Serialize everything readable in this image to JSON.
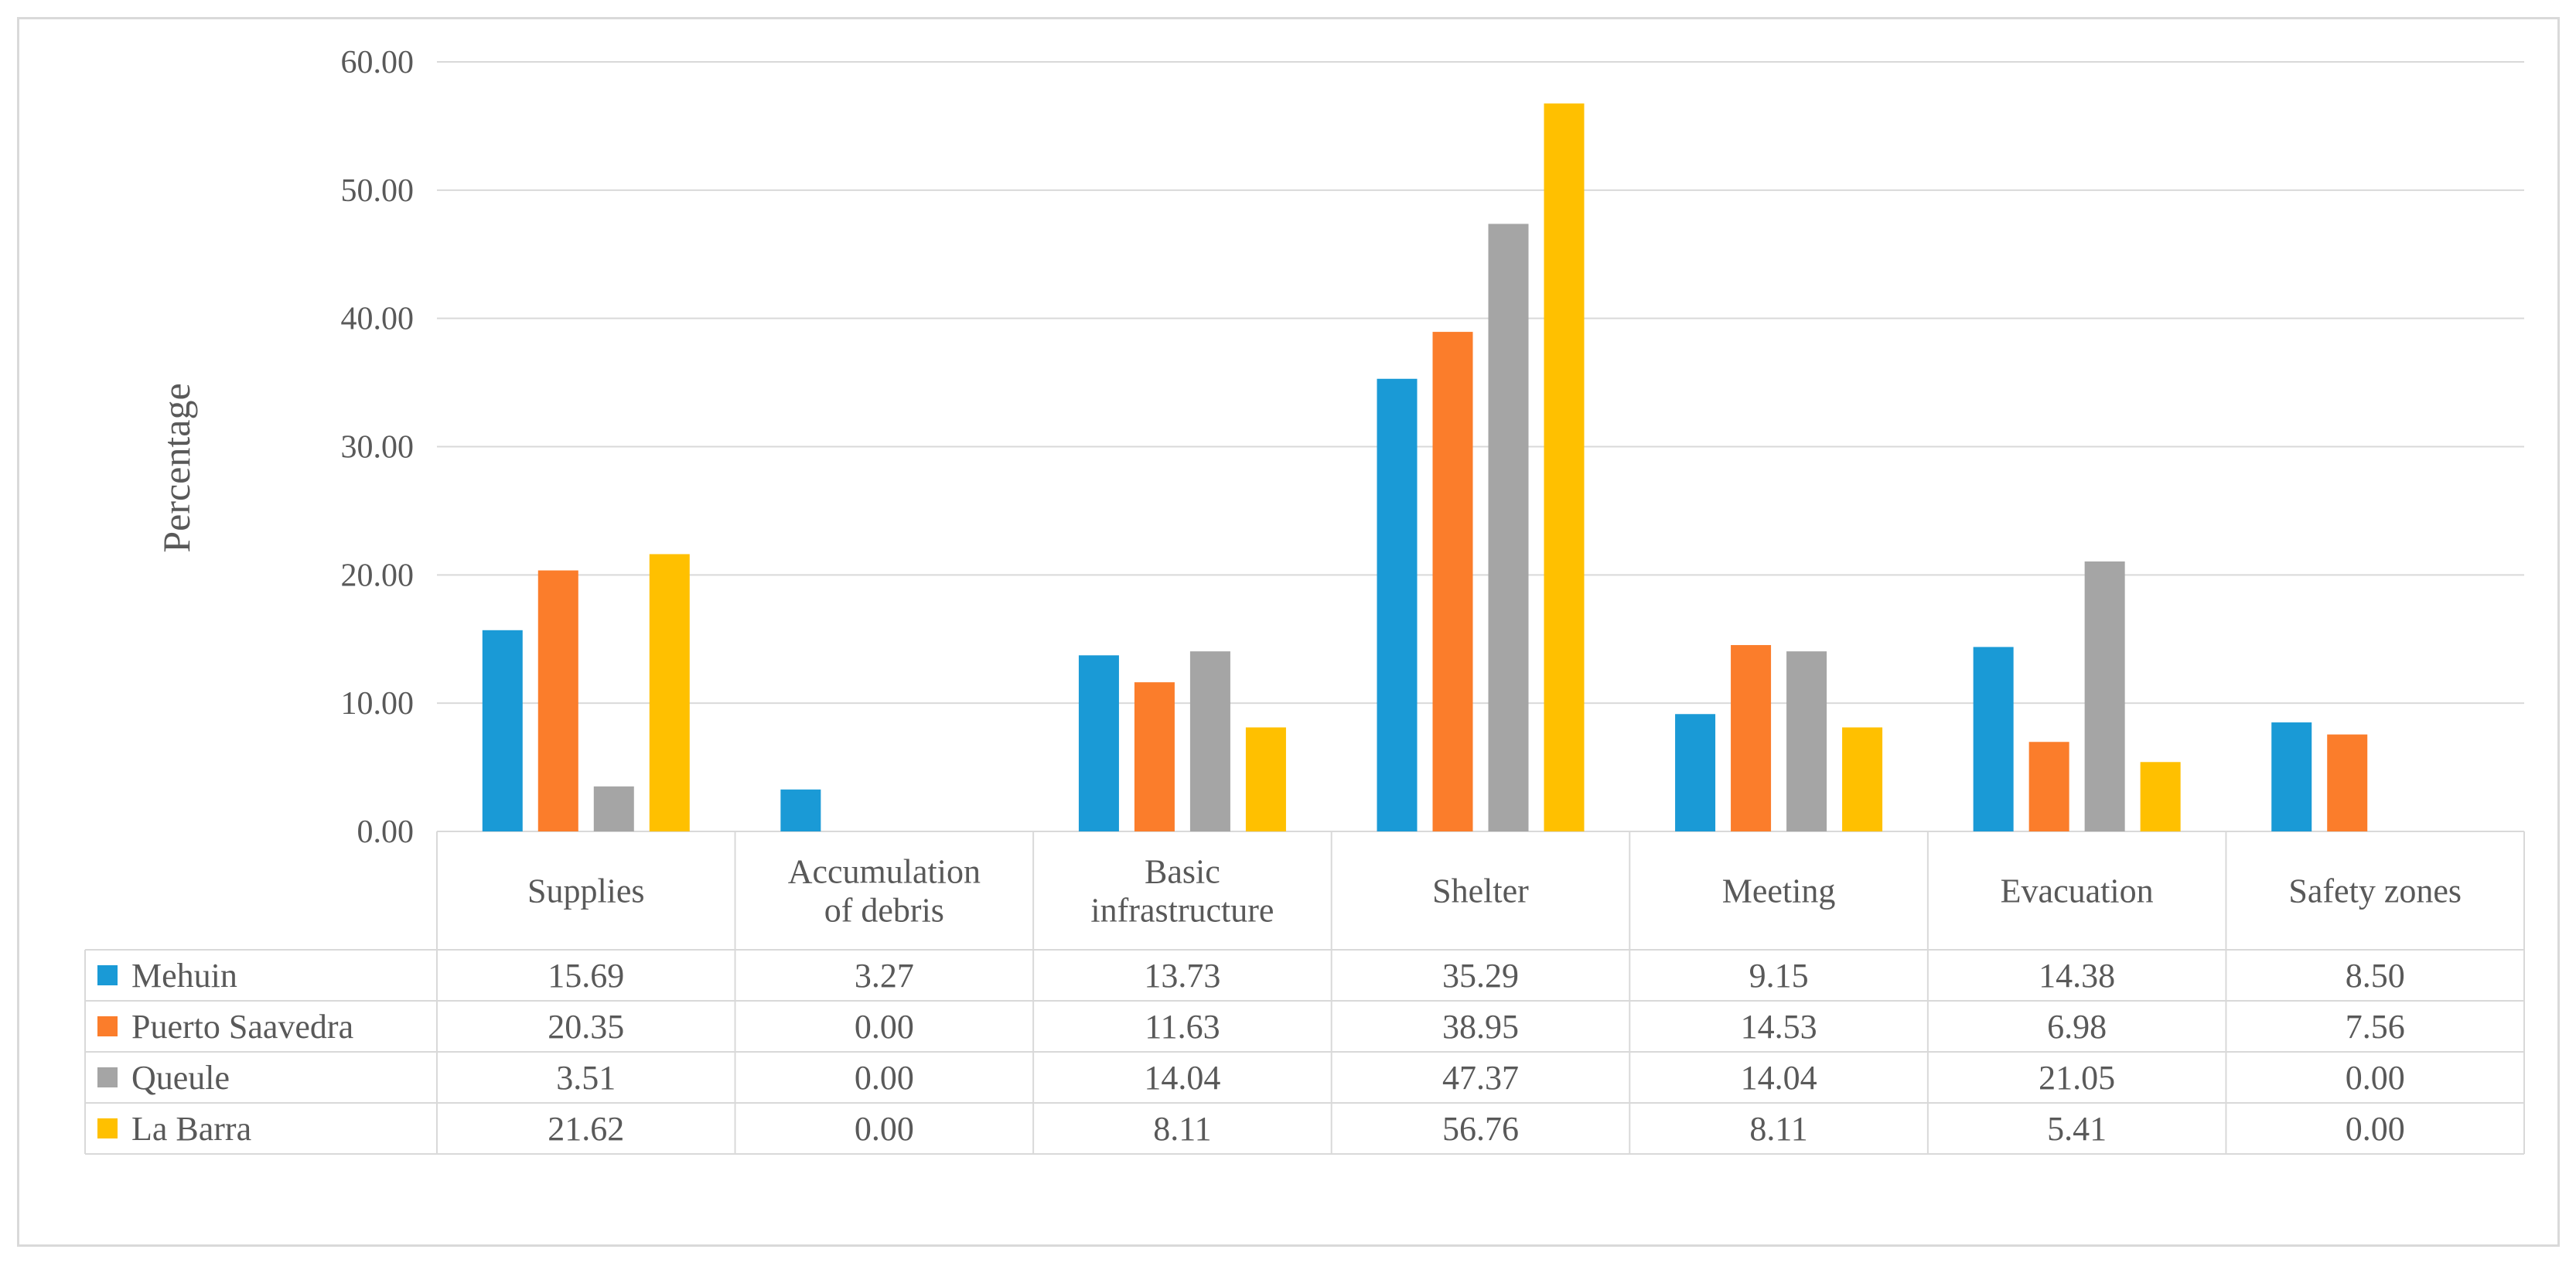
{
  "chart_data": {
    "type": "bar",
    "title": "",
    "xlabel": "",
    "ylabel": "Percentage",
    "ylim": [
      0,
      60
    ],
    "yticks": [
      "0.00",
      "10.00",
      "20.00",
      "30.00",
      "40.00",
      "50.00",
      "60.00"
    ],
    "categories": [
      [
        "Supplies"
      ],
      [
        "Accumulation",
        "of debris"
      ],
      [
        "Basic",
        "infrastructure"
      ],
      [
        "Shelter"
      ],
      [
        "Meeting"
      ],
      [
        "Evacuation"
      ],
      [
        "Safety zones"
      ]
    ],
    "series": [
      {
        "name": "Mehuin",
        "color": "#1a9ad6",
        "values": [
          15.69,
          3.27,
          13.73,
          35.29,
          9.15,
          14.38,
          8.5
        ],
        "labels": [
          "15.69",
          "3.27",
          "13.73",
          "35.29",
          "9.15",
          "14.38",
          "8.50"
        ]
      },
      {
        "name": "Puerto Saavedra",
        "color": "#fb7d2b",
        "values": [
          20.35,
          0.0,
          11.63,
          38.95,
          14.53,
          6.98,
          7.56
        ],
        "labels": [
          "20.35",
          "0.00",
          "11.63",
          "38.95",
          "14.53",
          "6.98",
          "7.56"
        ]
      },
      {
        "name": "Queule",
        "color": "#a5a5a5",
        "values": [
          3.51,
          0.0,
          14.04,
          47.37,
          14.04,
          21.05,
          0.0
        ],
        "labels": [
          "3.51",
          "0.00",
          "14.04",
          "47.37",
          "14.04",
          "21.05",
          "0.00"
        ]
      },
      {
        "name": "La Barra",
        "color": "#ffc000",
        "values": [
          21.62,
          0.0,
          8.11,
          56.76,
          8.11,
          5.41,
          0.0
        ],
        "labels": [
          "21.62",
          "0.00",
          "8.11",
          "56.76",
          "8.11",
          "5.41",
          "0.00"
        ]
      }
    ],
    "grid": true,
    "legend": "data-table-left"
  }
}
